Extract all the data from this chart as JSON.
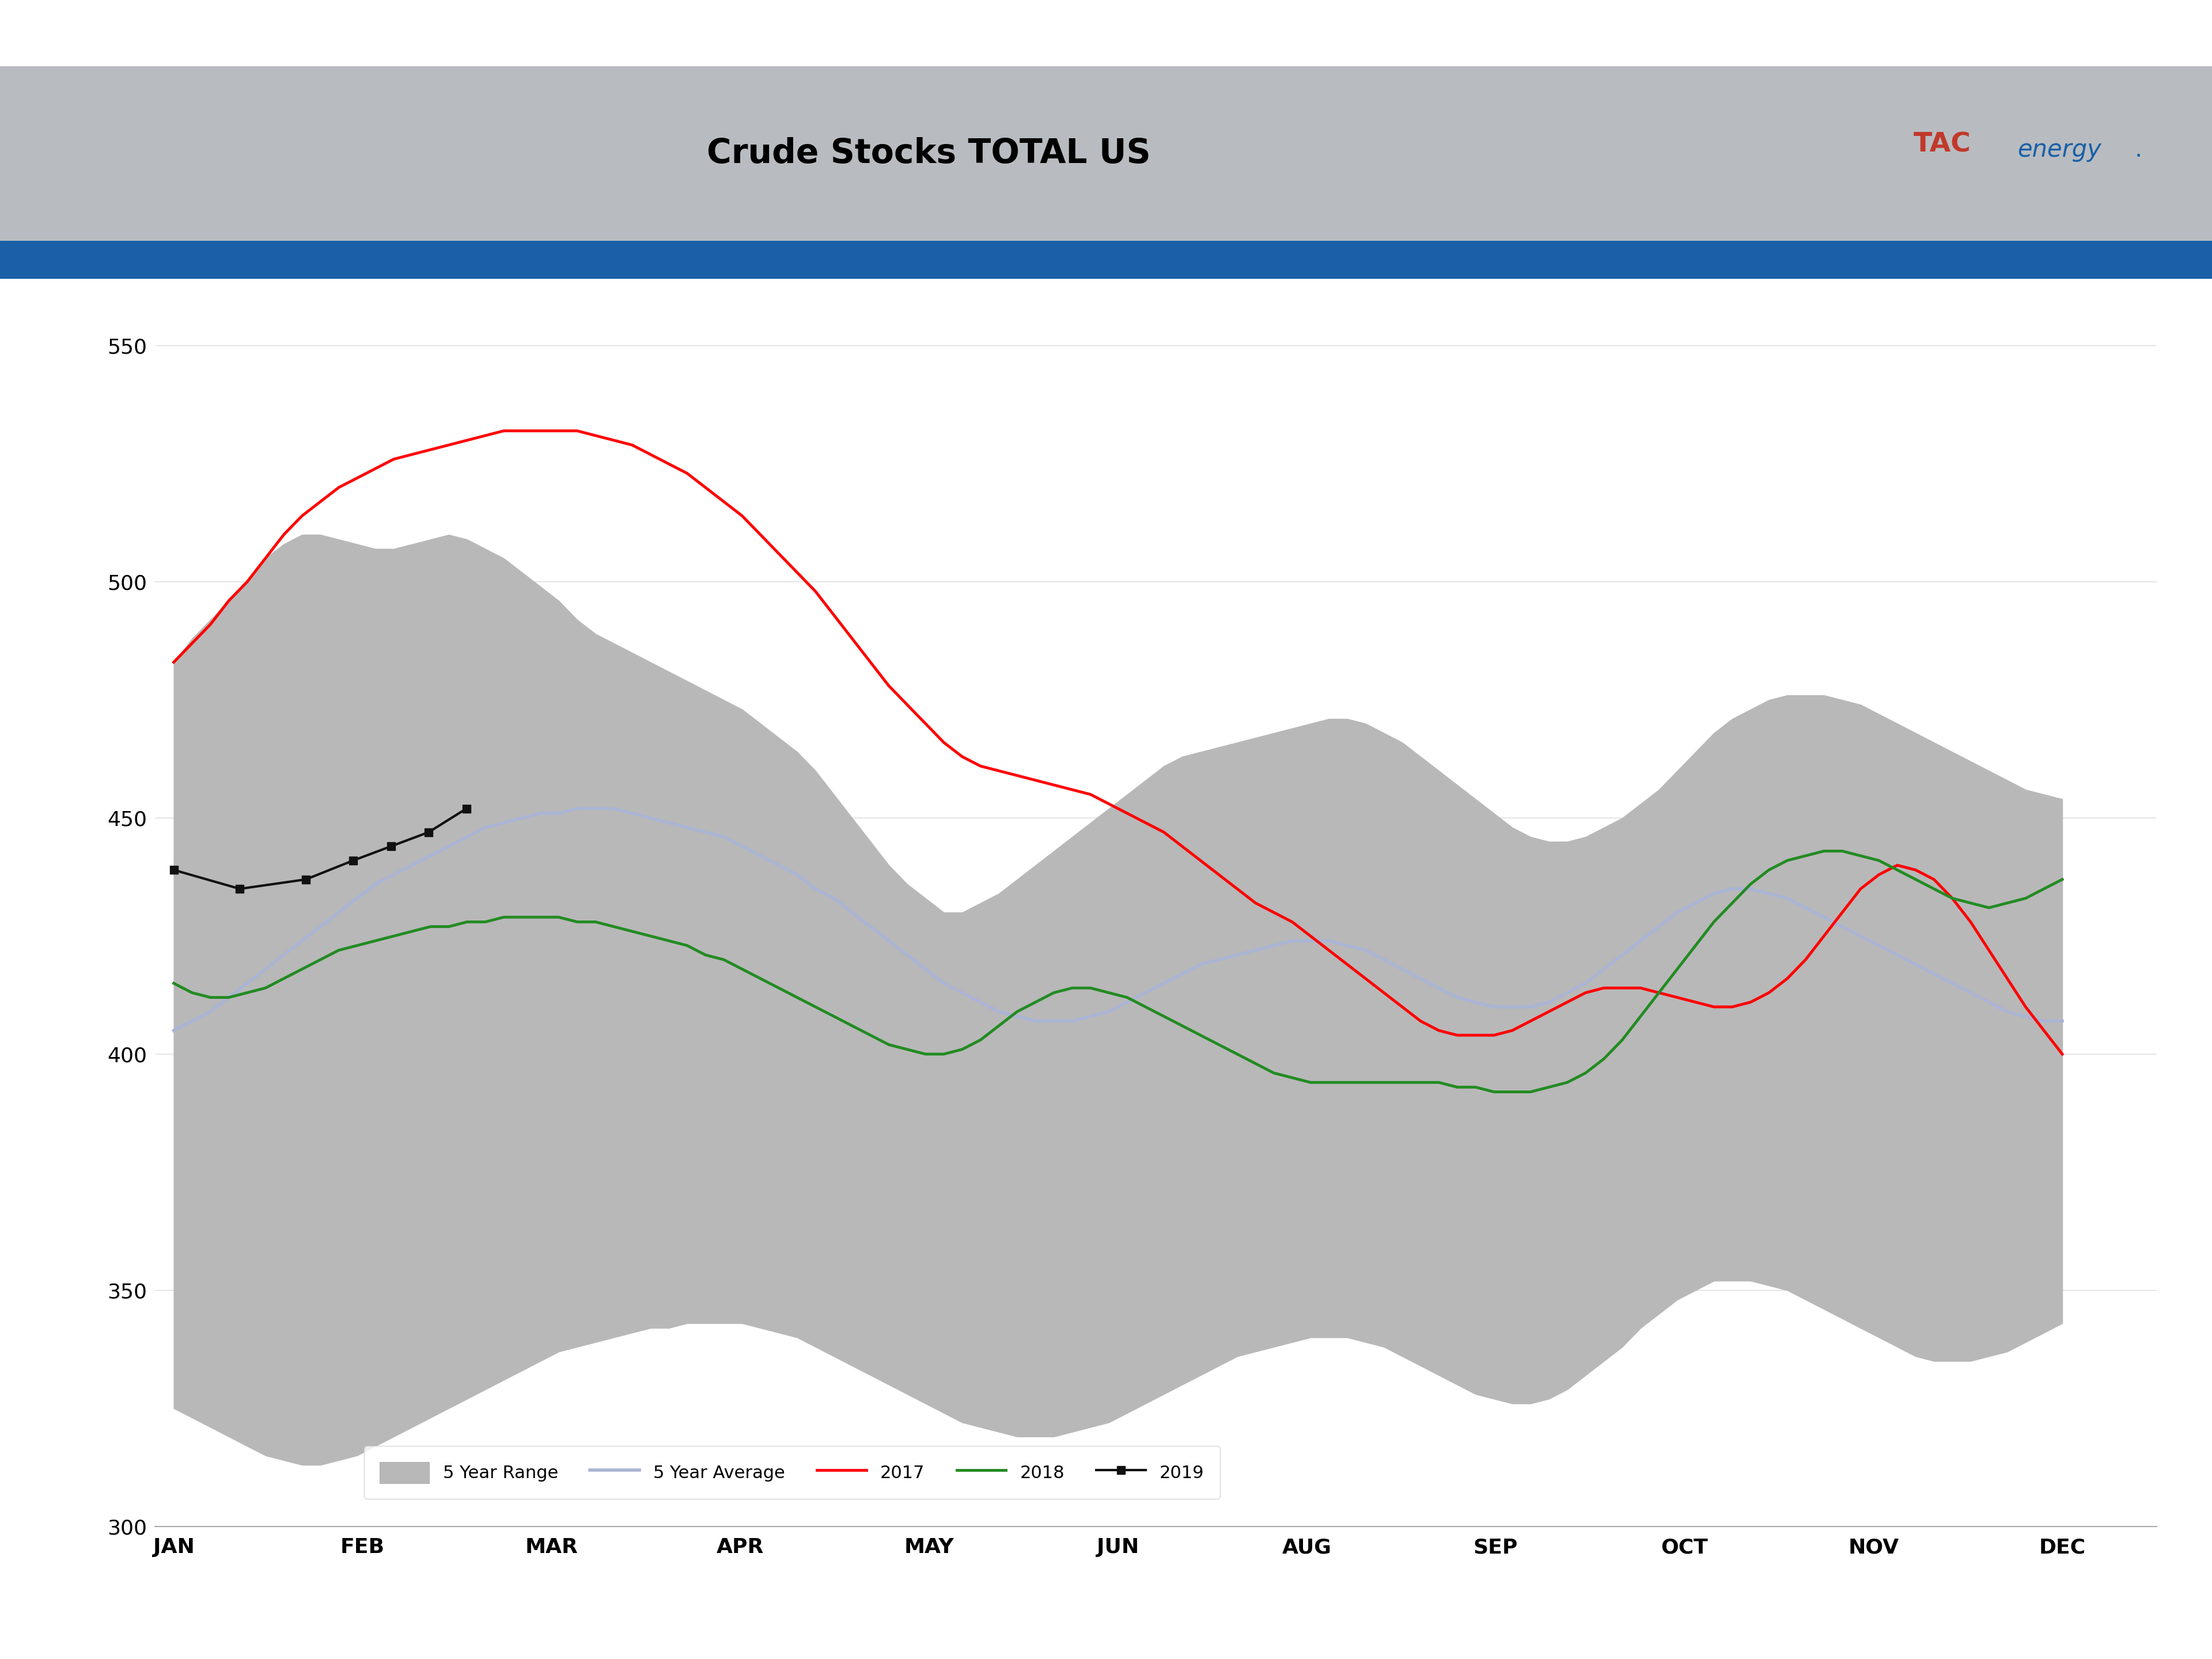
{
  "title": "Crude Stocks TOTAL US",
  "ylim": [
    300,
    560
  ],
  "yticks": [
    300,
    350,
    400,
    450,
    500,
    550
  ],
  "months": [
    "JAN",
    "FEB",
    "MAR",
    "APR",
    "MAY",
    "JUN",
    "AUG",
    "SEP",
    "OCT",
    "NOV",
    "DEC"
  ],
  "range_upper": [
    483,
    488,
    492,
    496,
    500,
    505,
    508,
    510,
    510,
    509,
    508,
    507,
    507,
    508,
    509,
    510,
    509,
    507,
    505,
    502,
    499,
    496,
    492,
    489,
    487,
    485,
    483,
    481,
    479,
    477,
    475,
    473,
    470,
    467,
    464,
    460,
    455,
    450,
    445,
    440,
    436,
    433,
    430,
    430,
    432,
    434,
    437,
    440,
    443,
    446,
    449,
    452,
    455,
    458,
    461,
    463,
    464,
    465,
    466,
    467,
    468,
    469,
    470,
    471,
    471,
    470,
    468,
    466,
    463,
    460,
    457,
    454,
    451,
    448,
    446,
    445,
    445,
    446,
    448,
    450,
    453,
    456,
    460,
    464,
    468,
    471,
    473,
    475,
    476,
    476,
    476,
    475,
    474,
    472,
    470,
    468,
    466,
    464,
    462,
    460,
    458,
    456,
    455,
    454
  ],
  "range_lower": [
    325,
    323,
    321,
    319,
    317,
    315,
    314,
    313,
    313,
    314,
    315,
    317,
    319,
    321,
    323,
    325,
    327,
    329,
    331,
    333,
    335,
    337,
    338,
    339,
    340,
    341,
    342,
    342,
    343,
    343,
    343,
    343,
    342,
    341,
    340,
    338,
    336,
    334,
    332,
    330,
    328,
    326,
    324,
    322,
    321,
    320,
    319,
    319,
    319,
    320,
    321,
    322,
    324,
    326,
    328,
    330,
    332,
    334,
    336,
    337,
    338,
    339,
    340,
    340,
    340,
    339,
    338,
    336,
    334,
    332,
    330,
    328,
    327,
    326,
    326,
    327,
    329,
    332,
    335,
    338,
    342,
    345,
    348,
    350,
    352,
    352,
    352,
    351,
    350,
    348,
    346,
    344,
    342,
    340,
    338,
    336,
    335,
    335,
    335,
    336,
    337,
    339,
    341,
    343
  ],
  "avg_5yr": [
    405,
    407,
    409,
    412,
    415,
    418,
    421,
    424,
    427,
    430,
    433,
    436,
    438,
    440,
    442,
    444,
    446,
    448,
    449,
    450,
    451,
    451,
    452,
    452,
    452,
    451,
    450,
    449,
    448,
    447,
    446,
    444,
    442,
    440,
    438,
    435,
    433,
    430,
    427,
    424,
    421,
    418,
    415,
    413,
    411,
    409,
    408,
    407,
    407,
    407,
    408,
    409,
    411,
    413,
    415,
    417,
    419,
    420,
    421,
    422,
    423,
    424,
    424,
    424,
    423,
    422,
    420,
    418,
    416,
    414,
    412,
    411,
    410,
    410,
    410,
    411,
    413,
    415,
    418,
    421,
    424,
    427,
    430,
    432,
    434,
    435,
    435,
    434,
    433,
    431,
    429,
    427,
    425,
    423,
    421,
    419,
    417,
    415,
    413,
    411,
    409,
    408,
    407,
    407
  ],
  "yr2017": [
    483,
    487,
    491,
    496,
    500,
    505,
    510,
    514,
    517,
    520,
    522,
    524,
    526,
    527,
    528,
    529,
    530,
    531,
    532,
    532,
    532,
    532,
    532,
    531,
    530,
    529,
    527,
    525,
    523,
    520,
    517,
    514,
    510,
    506,
    502,
    498,
    493,
    488,
    483,
    478,
    474,
    470,
    466,
    463,
    461,
    460,
    459,
    458,
    457,
    456,
    455,
    453,
    451,
    449,
    447,
    444,
    441,
    438,
    435,
    432,
    430,
    428,
    425,
    422,
    419,
    416,
    413,
    410,
    407,
    405,
    404,
    404,
    404,
    405,
    407,
    409,
    411,
    413,
    414,
    414,
    414,
    413,
    412,
    411,
    410,
    410,
    411,
    413,
    416,
    420,
    425,
    430,
    435,
    438,
    440,
    439,
    437,
    433,
    428,
    422,
    416,
    410,
    405,
    400
  ],
  "yr2018": [
    415,
    413,
    412,
    412,
    413,
    414,
    416,
    418,
    420,
    422,
    423,
    424,
    425,
    426,
    427,
    427,
    428,
    428,
    429,
    429,
    429,
    429,
    428,
    428,
    427,
    426,
    425,
    424,
    423,
    421,
    420,
    418,
    416,
    414,
    412,
    410,
    408,
    406,
    404,
    402,
    401,
    400,
    400,
    401,
    403,
    406,
    409,
    411,
    413,
    414,
    414,
    413,
    412,
    410,
    408,
    406,
    404,
    402,
    400,
    398,
    396,
    395,
    394,
    394,
    394,
    394,
    394,
    394,
    394,
    394,
    393,
    393,
    392,
    392,
    392,
    393,
    394,
    396,
    399,
    403,
    408,
    413,
    418,
    423,
    428,
    432,
    436,
    439,
    441,
    442,
    443,
    443,
    442,
    441,
    439,
    437,
    435,
    433,
    432,
    431,
    432,
    433,
    435,
    437
  ],
  "yr2019_x": [
    0.0,
    0.35,
    0.7,
    0.95,
    1.15,
    1.35,
    1.55
  ],
  "yr2019_y": [
    439,
    435,
    437,
    441,
    444,
    447,
    452
  ],
  "range_color": "#b8b8b8",
  "avg_color": "#aab4d4",
  "yr2017_color": "#ff0000",
  "yr2018_color": "#228b22",
  "yr2019_color": "#111111",
  "header_bg_color": "#b8bcc0",
  "stripe_color": "#1a5fa8",
  "tac_red": "#c0392b",
  "tac_blue": "#1a5fa8",
  "legend_labels": [
    "5 Year Range",
    "5 Year Average",
    "2017",
    "2018",
    "2019"
  ]
}
